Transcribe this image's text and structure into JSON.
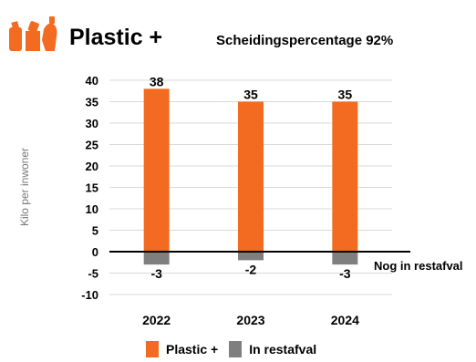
{
  "header": {
    "title": "Plastic +",
    "subtitle": "Scheidingspercentage 92%"
  },
  "colors": {
    "plastic": "#F26B21",
    "restafval": "#7F7F7F",
    "logo": "#F26B21"
  },
  "icons": {
    "logo": "plastic-bottles-icon"
  },
  "legend": {
    "items": [
      {
        "label": "Plastic +",
        "color": "#F26B21"
      },
      {
        "label": "In restafval",
        "color": "#7F7F7F"
      }
    ]
  },
  "chart_data": {
    "type": "bar",
    "categories": [
      "2022",
      "2023",
      "2024"
    ],
    "series": [
      {
        "name": "Plastic +",
        "values": [
          38,
          35,
          35
        ]
      },
      {
        "name": "In restafval",
        "values": [
          -3,
          -2,
          -3
        ]
      }
    ],
    "ylabel": "Kilo per inwoner",
    "ylim": [
      -10,
      40
    ],
    "yticks": [
      40,
      35,
      30,
      25,
      20,
      15,
      10,
      5,
      0,
      -5,
      -10
    ],
    "annotation": "Nog in restafval",
    "grid": true,
    "legend_position": "bottom"
  }
}
